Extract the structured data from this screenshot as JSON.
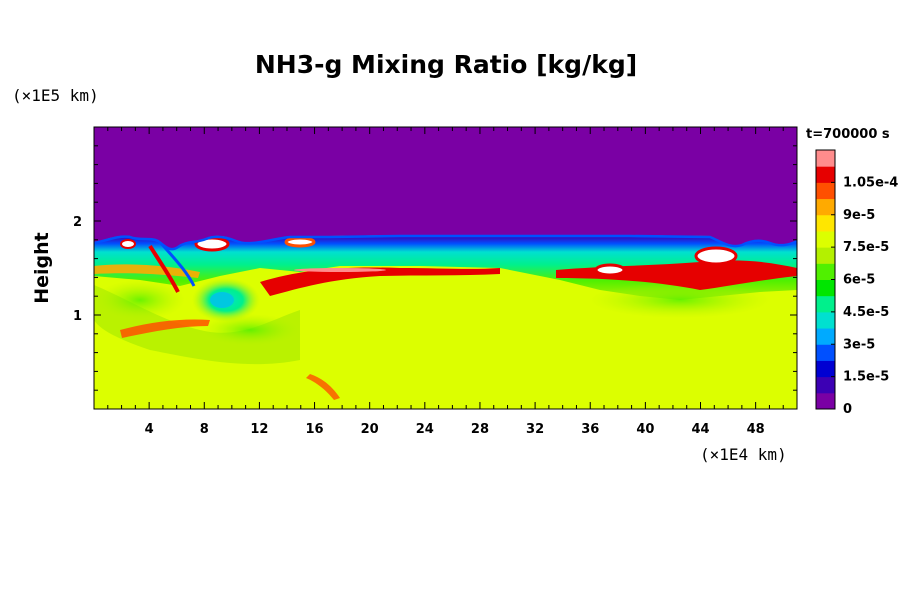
{
  "chart_data": {
    "type": "heatmap",
    "title": "NH3-g Mixing Ratio [kg/kg]",
    "xlabel": "",
    "ylabel": "Height",
    "x_unit": "(×1E4 km)",
    "y_unit": "(×1E5 km)",
    "time_label": "t=700000 s",
    "xlim": [
      0,
      51
    ],
    "ylim": [
      0,
      3
    ],
    "x_ticks": [
      4,
      8,
      12,
      16,
      20,
      24,
      28,
      32,
      36,
      40,
      44,
      48
    ],
    "x_tick_labels": [
      "4",
      "8",
      "12",
      "16",
      "20",
      "24",
      "28",
      "32",
      "36",
      "40",
      "44",
      "48"
    ],
    "y_ticks": [
      1,
      2
    ],
    "y_tick_labels": [
      "1",
      "2"
    ],
    "colorbar": {
      "range": [
        0,
        0.00012
      ],
      "tick_values": [
        0,
        1.5e-05,
        3e-05,
        4.5e-05,
        6e-05,
        7.5e-05,
        9e-05,
        0.000105
      ],
      "tick_labels": [
        "0",
        "1.5e-5",
        "3e-5",
        "4.5e-5",
        "6e-5",
        "7.5e-5",
        "9e-5",
        "1.05e-4"
      ],
      "colors": [
        "#7a00a4",
        "#3c00b4",
        "#0000d2",
        "#0050ff",
        "#00aaff",
        "#00e0d0",
        "#00f08c",
        "#00e600",
        "#50f000",
        "#b4f000",
        "#dcff00",
        "#ffe600",
        "#ffaa00",
        "#ff5000",
        "#e60000",
        "#ff8c8c"
      ]
    },
    "fields": {
      "upper_region_value": 0,
      "lower_region_value": 7.8e-05,
      "upper_boundary_height": 1.85,
      "enhanced_layer_height_range": [
        1.4,
        1.55
      ],
      "enhanced_layer_value": 0.0001,
      "peak_value": 0.000115,
      "low_anomaly_center": [
        9.5,
        1.15
      ],
      "low_anomaly_value": 4e-05
    }
  }
}
